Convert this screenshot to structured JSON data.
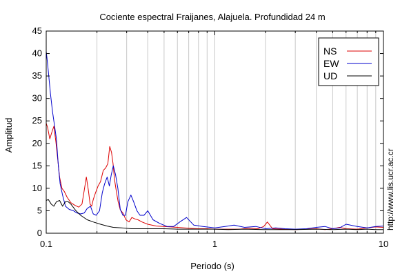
{
  "chart_data": {
    "type": "line",
    "title": "Cociente espectral Fraijanes, Alajuela. Profundidad 24 m",
    "xlabel": "Periodo (s)",
    "ylabel": "Amplitud",
    "watermark": "http://www.lis.ucr.ac.cr",
    "x_scale": "log",
    "xlim": [
      0.1,
      10
    ],
    "ylim": [
      0,
      45
    ],
    "x_ticks": [
      "0.1",
      "1",
      "10"
    ],
    "y_ticks": [
      "0",
      "5",
      "10",
      "15",
      "20",
      "25",
      "30",
      "35",
      "40",
      "45"
    ],
    "grid": true,
    "legend_position": "top-right",
    "series": [
      {
        "name": "NS",
        "color": "#dd0000",
        "x": [
          0.1,
          0.102,
          0.105,
          0.108,
          0.111,
          0.114,
          0.117,
          0.12,
          0.124,
          0.128,
          0.133,
          0.14,
          0.148,
          0.156,
          0.163,
          0.168,
          0.173,
          0.178,
          0.182,
          0.186,
          0.19,
          0.196,
          0.203,
          0.21,
          0.218,
          0.225,
          0.232,
          0.238,
          0.244,
          0.249,
          0.254,
          0.26,
          0.267,
          0.275,
          0.285,
          0.297,
          0.31,
          0.322,
          0.335,
          0.35,
          0.37,
          0.4,
          0.45,
          0.5,
          0.6,
          0.7,
          0.8,
          0.9,
          1.0,
          1.2,
          1.4,
          1.6,
          1.8,
          1.95,
          2.05,
          2.2,
          2.5,
          3.0,
          3.5,
          4.0,
          4.5,
          5.0,
          5.5,
          6.0,
          7.0,
          8.0,
          9.0,
          10.0
        ],
        "values": [
          24.5,
          23.5,
          21.0,
          22.5,
          23.8,
          20.5,
          16.5,
          12.5,
          10.0,
          9.3,
          8.0,
          6.8,
          6.2,
          5.8,
          6.5,
          9.5,
          12.5,
          9.5,
          6.5,
          6.0,
          7.5,
          9.0,
          10.5,
          11.5,
          14.0,
          14.5,
          15.5,
          19.3,
          18.0,
          15.5,
          12.0,
          9.5,
          7.0,
          5.2,
          4.5,
          3.0,
          2.5,
          3.5,
          3.2,
          3.0,
          2.5,
          2.0,
          1.6,
          1.5,
          1.3,
          1.1,
          1.0,
          1.0,
          0.9,
          0.9,
          0.9,
          1.1,
          1.0,
          1.5,
          2.5,
          1.0,
          0.9,
          0.8,
          0.9,
          1.0,
          0.8,
          1.0,
          1.3,
          1.0,
          0.9,
          1.2,
          1.4,
          1.3
        ]
      },
      {
        "name": "EW",
        "color": "#0000cc",
        "x": [
          0.1,
          0.101,
          0.103,
          0.106,
          0.109,
          0.112,
          0.115,
          0.118,
          0.121,
          0.125,
          0.13,
          0.137,
          0.145,
          0.152,
          0.16,
          0.168,
          0.175,
          0.183,
          0.19,
          0.198,
          0.207,
          0.215,
          0.222,
          0.23,
          0.237,
          0.243,
          0.25,
          0.258,
          0.266,
          0.275,
          0.285,
          0.295,
          0.305,
          0.318,
          0.33,
          0.345,
          0.36,
          0.38,
          0.4,
          0.43,
          0.47,
          0.52,
          0.57,
          0.62,
          0.68,
          0.75,
          0.85,
          1.0,
          1.15,
          1.3,
          1.5,
          1.75,
          2.0,
          2.3,
          2.6,
          3.0,
          3.5,
          4.0,
          4.5,
          5.0,
          5.5,
          6.0,
          7.0,
          8.0,
          9.0,
          10.0
        ],
        "values": [
          40.5,
          39.0,
          36.0,
          31.0,
          27.0,
          24.0,
          21.0,
          15.0,
          11.0,
          8.5,
          6.0,
          5.3,
          5.0,
          4.5,
          4.3,
          4.5,
          5.5,
          6.0,
          4.3,
          4.0,
          5.0,
          9.0,
          11.0,
          12.5,
          10.5,
          13.0,
          15.0,
          13.0,
          10.0,
          5.3,
          4.0,
          4.0,
          7.0,
          8.5,
          7.0,
          5.0,
          4.0,
          4.0,
          5.0,
          3.0,
          2.2,
          1.5,
          1.5,
          2.5,
          3.5,
          1.8,
          1.5,
          1.2,
          1.5,
          1.8,
          1.3,
          1.5,
          1.0,
          1.2,
          1.0,
          0.9,
          1.0,
          1.3,
          1.5,
          1.0,
          1.2,
          2.0,
          1.5,
          1.2,
          1.5,
          1.6
        ]
      },
      {
        "name": "UD",
        "color": "#000000",
        "x": [
          0.1,
          0.103,
          0.107,
          0.111,
          0.115,
          0.12,
          0.125,
          0.13,
          0.135,
          0.14,
          0.15,
          0.16,
          0.175,
          0.19,
          0.21,
          0.23,
          0.25,
          0.28,
          0.32,
          0.36,
          0.4,
          0.5,
          0.6,
          0.7,
          0.8,
          1.0,
          1.2,
          1.5,
          2.0,
          2.5,
          3.0,
          4.0,
          5.0,
          6.0,
          7.0,
          8.0,
          9.0,
          10.0
        ],
        "values": [
          7.3,
          7.5,
          6.5,
          6.0,
          7.0,
          7.3,
          6.0,
          7.0,
          7.0,
          6.5,
          5.0,
          4.0,
          3.0,
          2.5,
          2.0,
          1.6,
          1.3,
          1.2,
          1.0,
          1.0,
          1.0,
          1.0,
          0.9,
          0.9,
          0.9,
          0.9,
          0.8,
          0.9,
          0.8,
          0.8,
          0.8,
          0.9,
          0.8,
          0.9,
          0.8,
          0.9,
          0.8,
          0.8
        ]
      }
    ]
  }
}
